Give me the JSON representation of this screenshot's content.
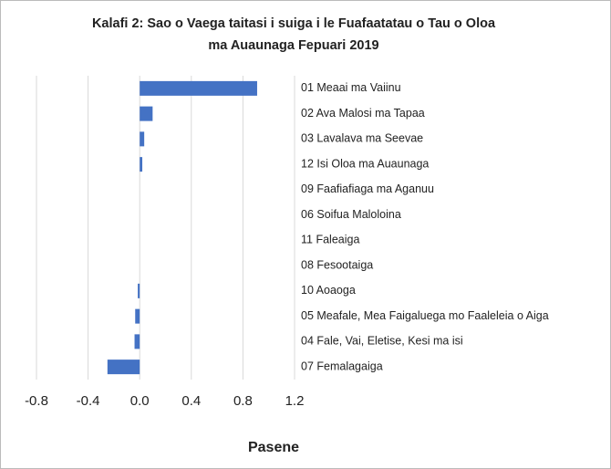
{
  "chart_data": {
    "type": "bar",
    "orientation": "horizontal",
    "title": [
      "Kalafi 2: Sao o Vaega taitasi i suiga i le Fuafaatatau o Tau o Oloa",
      "ma Auaunaga Fepuari 2019"
    ],
    "xlabel": "Pasene",
    "categories": [
      "01 Meaai ma Vaiinu",
      "02 Ava Malosi ma Tapaa",
      "03 Lavalava ma Seevae",
      "12 Isi Oloa ma Auaunaga",
      "09 Faafiafiaga ma Aganuu",
      "06 Soifua Maloloina",
      "11 Faleaiga",
      "08 Fesootaiga",
      "10 Aoaoga",
      "05 Meafale, Mea Faigaluega mo Faaleleia o Aiga",
      "04 Fale, Vai, Eletise, Kesi ma isi",
      "07 Femalagaiga"
    ],
    "values": [
      0.91,
      0.1,
      0.035,
      0.02,
      0,
      0,
      0,
      0,
      -0.015,
      -0.035,
      -0.04,
      -0.25
    ],
    "color": "#4472c4",
    "xlim": [
      -0.8,
      1.2
    ],
    "xticks": [
      -0.8,
      -0.4,
      {
        "value": 0,
        "label": "0.0"
      },
      0.4,
      0.8,
      1.2
    ],
    "grid": true
  }
}
